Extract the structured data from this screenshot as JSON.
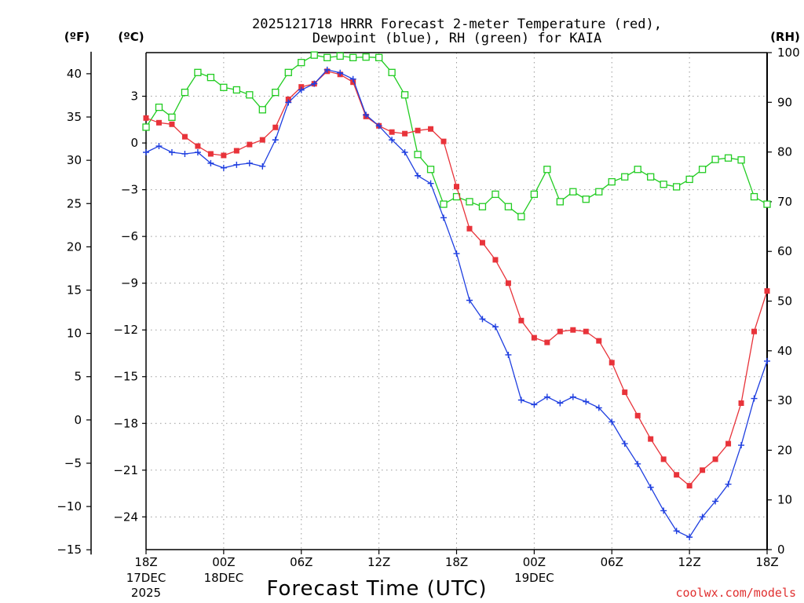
{
  "chart_data": {
    "type": "line",
    "title_line1": "2025121718 HRRR Forecast 2-meter Temperature (red),",
    "title_line2": "Dewpoint (blue), RH (green) for KAIA",
    "xlabel": "Forecast Time (UTC)",
    "watermark": "coolwx.com/models",
    "unit_labels": {
      "fahrenheit": "(ºF)",
      "celsius": "(ºC)",
      "rh": "(RH)"
    },
    "x_range": [
      0,
      48
    ],
    "x_ticks": [
      {
        "h": 0,
        "label": "18Z",
        "date": "17DEC",
        "year": "2025"
      },
      {
        "h": 6,
        "label": "00Z",
        "date": "18DEC",
        "year": ""
      },
      {
        "h": 12,
        "label": "06Z",
        "date": "",
        "year": ""
      },
      {
        "h": 18,
        "label": "12Z",
        "date": "",
        "year": ""
      },
      {
        "h": 24,
        "label": "18Z",
        "date": "",
        "year": ""
      },
      {
        "h": 30,
        "label": "00Z",
        "date": "19DEC",
        "year": ""
      },
      {
        "h": 36,
        "label": "06Z",
        "date": "",
        "year": ""
      },
      {
        "h": 42,
        "label": "12Z",
        "date": "",
        "year": ""
      },
      {
        "h": 48,
        "label": "18Z",
        "date": "",
        "year": ""
      }
    ],
    "celsius_range": [
      -26.1,
      5.8
    ],
    "celsius_ticks": [
      3,
      0,
      -3,
      -6,
      -9,
      -12,
      -15,
      -18,
      -21,
      -24
    ],
    "fahrenheit_ticks": [
      40,
      35,
      30,
      25,
      20,
      15,
      10,
      5,
      0,
      -5,
      -10,
      -15
    ],
    "rh_range": [
      0,
      100
    ],
    "rh_ticks": [
      100,
      90,
      80,
      70,
      60,
      50,
      40,
      30,
      20,
      10,
      0
    ],
    "grid": true,
    "series": [
      {
        "name": "Temperature",
        "units": "degC",
        "color": "#e8333a",
        "marker": "square",
        "x": [
          0,
          1,
          2,
          3,
          4,
          5,
          6,
          7,
          8,
          9,
          10,
          11,
          12,
          13,
          14,
          15,
          16,
          17,
          18,
          19,
          20,
          21,
          22,
          23,
          24,
          25,
          26,
          27,
          28,
          29,
          30,
          31,
          32,
          33,
          34,
          35,
          36,
          37,
          38,
          39,
          40,
          41,
          42,
          43,
          44,
          45,
          46,
          47,
          48
        ],
        "values": [
          1.6,
          1.3,
          1.2,
          0.4,
          -0.2,
          -0.7,
          -0.8,
          -0.5,
          -0.1,
          0.2,
          1.0,
          2.8,
          3.6,
          3.8,
          4.6,
          4.4,
          3.9,
          1.7,
          1.1,
          0.7,
          0.6,
          0.8,
          0.9,
          0.1,
          -2.8,
          -5.5,
          -6.4,
          -7.5,
          -9.0,
          -11.4,
          -12.5,
          -12.8,
          -12.1,
          -12.0,
          -12.1,
          -12.7,
          -14.1,
          -16.0,
          -17.5,
          -19.0,
          -20.3,
          -21.3,
          -22.0,
          -21.0,
          -20.3,
          -19.3,
          -16.7,
          -12.1,
          -9.5
        ]
      },
      {
        "name": "Dewpoint",
        "units": "degC",
        "color": "#1f3fe0",
        "marker": "plus",
        "x": [
          0,
          1,
          2,
          3,
          4,
          5,
          6,
          7,
          8,
          9,
          10,
          11,
          12,
          13,
          14,
          15,
          16,
          17,
          18,
          19,
          20,
          21,
          22,
          23,
          24,
          25,
          26,
          27,
          28,
          29,
          30,
          31,
          32,
          33,
          34,
          35,
          36,
          37,
          38,
          39,
          40,
          41,
          42,
          43,
          44,
          45,
          46,
          47,
          48
        ],
        "values": [
          -0.6,
          -0.2,
          -0.6,
          -0.7,
          -0.6,
          -1.3,
          -1.6,
          -1.4,
          -1.3,
          -1.5,
          0.2,
          2.6,
          3.4,
          3.8,
          4.7,
          4.5,
          4.1,
          1.8,
          1.1,
          0.2,
          -0.6,
          -2.1,
          -2.6,
          -4.8,
          -7.1,
          -10.1,
          -11.3,
          -11.8,
          -13.6,
          -16.5,
          -16.8,
          -16.3,
          -16.7,
          -16.3,
          -16.6,
          -17.0,
          -17.9,
          -19.3,
          -20.6,
          -22.1,
          -23.6,
          -24.9,
          -25.3,
          -24.0,
          -23.0,
          -21.9,
          -19.4,
          -16.4,
          -14.0
        ]
      },
      {
        "name": "RH",
        "units": "percent",
        "color": "#22cc22",
        "marker": "open-square",
        "x": [
          0,
          1,
          2,
          3,
          4,
          5,
          6,
          7,
          8,
          9,
          10,
          11,
          12,
          13,
          14,
          15,
          16,
          17,
          18,
          19,
          20,
          21,
          22,
          23,
          24,
          25,
          26,
          27,
          28,
          29,
          30,
          31,
          32,
          33,
          34,
          35,
          36,
          37,
          38,
          39,
          40,
          41,
          42,
          43,
          44,
          45,
          46,
          47,
          48
        ],
        "values": [
          85,
          89,
          87,
          92,
          96,
          95,
          93,
          92.5,
          91.5,
          88.5,
          92,
          96,
          98,
          99.5,
          99,
          99.3,
          99,
          99.1,
          99,
          96,
          91.5,
          79.5,
          76.5,
          69.5,
          71,
          70,
          69,
          71.5,
          69,
          67,
          71.5,
          76.5,
          70,
          72,
          70.5,
          72,
          74,
          75,
          76.5,
          75,
          73.5,
          73,
          74.5,
          76.5,
          78.5,
          78.8,
          78.4,
          71,
          69.5
        ]
      }
    ]
  }
}
